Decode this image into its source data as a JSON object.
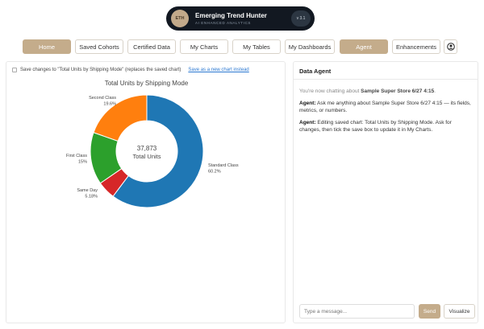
{
  "brand": {
    "logo_text": "ETH",
    "title": "Emerging Trend Hunter",
    "subtitle": "AI ENHANCED ANALYTICS",
    "version": "v 3.1"
  },
  "nav": {
    "items": [
      {
        "label": "Home",
        "active": true
      },
      {
        "label": "Saved Cohorts",
        "active": false
      },
      {
        "label": "Certified Data",
        "active": false
      },
      {
        "label": "My Charts",
        "active": false
      },
      {
        "label": "My Tables",
        "active": false
      },
      {
        "label": "My Dashboards",
        "active": false
      },
      {
        "label": "Agent",
        "active": true
      },
      {
        "label": "Enhancements",
        "active": false
      }
    ],
    "user_icon": "user-circle-icon"
  },
  "save_bar": {
    "label": "Save changes to \"Total Units by Shipping Mode\" (replaces the saved chart)",
    "link": "Save as a new chart instead"
  },
  "chart_data": {
    "type": "pie",
    "title": "Total Units by Shipping Mode",
    "center_value": "37,873",
    "center_label": "Total Units",
    "slices": [
      {
        "name": "Standard Class",
        "percent_label": "60.2%",
        "value": 60.2,
        "color": "#1f77b4"
      },
      {
        "name": "Same Day",
        "percent_label": "5.18%",
        "value": 5.18,
        "color": "#d62728"
      },
      {
        "name": "First Class",
        "percent_label": "15%",
        "value": 15.0,
        "color": "#2ca02c"
      },
      {
        "name": "Second Class",
        "percent_label": "19.6%",
        "value": 19.6,
        "color": "#ff7f0e"
      }
    ]
  },
  "agent": {
    "header": "Data Agent",
    "intro_prefix": "You're now chatting about ",
    "intro_dataset": "Sample Super Store 6/27 4:15",
    "intro_suffix": ".",
    "messages": [
      {
        "speaker": "Agent:",
        "text": " Ask me anything about Sample Super Store 6/27 4:15 — its fields, metrics, or numbers."
      },
      {
        "speaker": "Agent:",
        "text": " Editing saved chart: Total Units by Shipping Mode. Ask for changes, then tick the save box to update it in My Charts."
      }
    ],
    "input_placeholder": "Type a message...",
    "send_label": "Send",
    "visualize_label": "Visualize"
  }
}
